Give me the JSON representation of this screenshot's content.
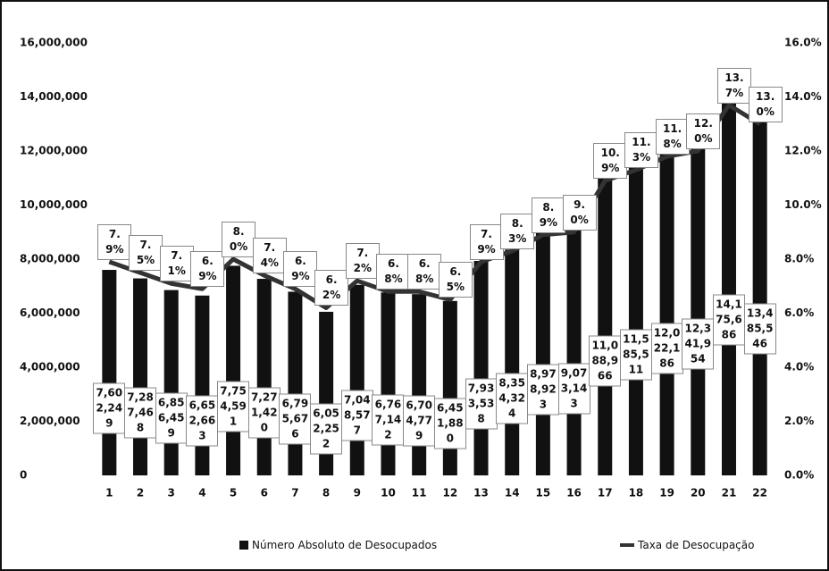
{
  "chart_data": {
    "type": "bar",
    "categories": [
      "1",
      "2",
      "3",
      "4",
      "5",
      "6",
      "7",
      "8",
      "9",
      "10",
      "11",
      "12",
      "13",
      "14",
      "15",
      "16",
      "17",
      "18",
      "19",
      "20",
      "21",
      "22"
    ],
    "series": [
      {
        "name": "Número Absoluto de Desocupados",
        "color": "#111111",
        "values": [
          7602249,
          7287468,
          6856459,
          6652663,
          7754591,
          7271420,
          6795676,
          6052252,
          7048577,
          6767142,
          6704779,
          6451880,
          7933538,
          8354324,
          8978923,
          9073143,
          11088966,
          11585511,
          12022186,
          12341954,
          14175686,
          13485546
        ],
        "value_labels": [
          "7,602,249",
          "7,287,468",
          "6,856,459",
          "6,652,663",
          "7,754,591",
          "7,271,420",
          "6,795,676",
          "6,052,252",
          "7,048,577",
          "6,767,142",
          "6,704,779",
          "6,451,880",
          "7,933,538",
          "8,354,324",
          "8,978,923",
          "9,073,143",
          "11,088,966",
          "11,585,511",
          "12,022,186",
          "12,341,954",
          "14,175,686",
          "13,485,546"
        ]
      },
      {
        "name": "Taxa de Desocupação",
        "type": "line",
        "axis": "y2",
        "color": "#333333",
        "values": [
          7.9,
          7.5,
          7.1,
          6.9,
          8.0,
          7.4,
          6.9,
          6.2,
          7.2,
          6.8,
          6.8,
          6.5,
          7.9,
          8.3,
          8.9,
          9.0,
          10.9,
          11.3,
          11.8,
          12.0,
          13.7,
          13.0
        ],
        "value_labels": [
          "7.9%",
          "7.5%",
          "7.1%",
          "6.9%",
          "8.0%",
          "7.4%",
          "6.9%",
          "6.2%",
          "7.2%",
          "6.8%",
          "6.8%",
          "6.5%",
          "7.9%",
          "8.3%",
          "8.9%",
          "9.0%",
          "10.9%",
          "11.3%",
          "11.8%",
          "12.0%",
          "13.7%",
          "13.0%"
        ]
      }
    ],
    "ylim": [
      0,
      16000000
    ],
    "yticks": [
      0,
      {
        "value": 2000000,
        "label": "2,000,000"
      },
      {
        "value": 4000000,
        "label": "4,000,000"
      },
      {
        "value": 6000000,
        "label": "6,000,000"
      },
      {
        "value": 8000000,
        "label": "8,000,000"
      },
      {
        "value": 10000000,
        "label": "10,000,000"
      },
      {
        "value": 12000000,
        "label": "12,000,000"
      },
      {
        "value": 14000000,
        "label": "14,000,000"
      },
      {
        "value": 16000000,
        "label": "16,000,000"
      }
    ],
    "y2lim": [
      0,
      16
    ],
    "y2ticks": [
      {
        "value": 0,
        "label": "0.0%"
      },
      {
        "value": 2,
        "label": "2.0%"
      },
      {
        "value": 4,
        "label": "4.0%"
      },
      {
        "value": 6,
        "label": "6.0%"
      },
      {
        "value": 8,
        "label": "8.0%"
      },
      {
        "value": 10,
        "label": "10.0%"
      },
      {
        "value": 12,
        "label": "12.0%"
      },
      {
        "value": 14,
        "label": "14.0%"
      },
      {
        "value": 16,
        "label": "16.0%"
      }
    ],
    "legend": "bottom",
    "grid": false
  }
}
